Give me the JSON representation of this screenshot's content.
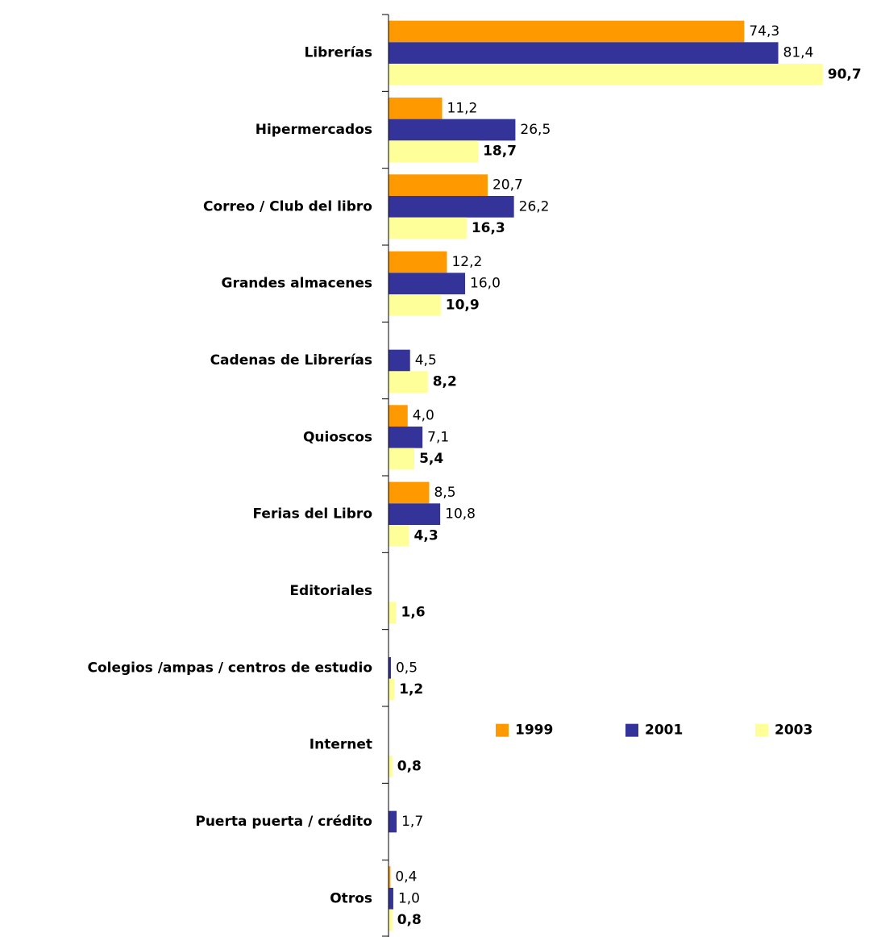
{
  "chart_data": {
    "type": "hbar",
    "categories": [
      "Librerías",
      "Hipermercados",
      "Correo / Club del libro",
      "Grandes almacenes",
      "Cadenas de Librerías",
      "Quioscos",
      "Ferias del Libro",
      "Editoriales",
      "Colegios /ampas / centros de estudio",
      "Internet",
      "Puerta puerta / crédito",
      "Otros"
    ],
    "series": [
      {
        "name": "1999",
        "color": "#ff9900",
        "values": [
          74.3,
          11.2,
          20.7,
          12.2,
          null,
          4.0,
          8.5,
          null,
          null,
          null,
          null,
          0.4
        ],
        "value_labels": [
          "74,3",
          "11,2",
          "20,7",
          "12,2",
          null,
          "4,0",
          "8,5",
          null,
          null,
          null,
          null,
          "0,4"
        ]
      },
      {
        "name": "2001",
        "color": "#333399",
        "values": [
          81.4,
          26.5,
          26.2,
          16.0,
          4.5,
          7.1,
          10.8,
          null,
          0.5,
          null,
          1.7,
          1.0
        ],
        "value_labels": [
          "81,4",
          "26,5",
          "26,2",
          "16,0",
          "4,5",
          "7,1",
          "10,8",
          null,
          "0,5",
          null,
          "1,7",
          "1,0"
        ]
      },
      {
        "name": "2003",
        "color": "#ffff99",
        "values": [
          90.7,
          18.7,
          16.3,
          10.9,
          8.2,
          5.4,
          4.3,
          1.6,
          1.2,
          0.8,
          null,
          0.8
        ],
        "value_labels": [
          "90,7",
          "18,7",
          "16,3",
          "10,9",
          "8,2",
          "5,4",
          "4,3",
          "1,6",
          "1,2",
          "0,8",
          null,
          "0,8"
        ]
      }
    ],
    "xlim": [
      0,
      100
    ],
    "legend": "center-right"
  }
}
